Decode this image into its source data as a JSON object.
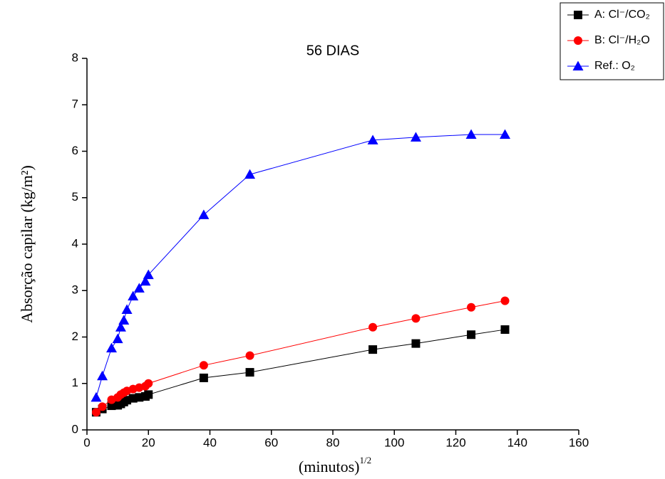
{
  "chart_data": {
    "type": "line",
    "title": "56 DIAS",
    "x_label": {
      "text": "(minutos)",
      "sup": "1/2"
    },
    "y_label": "Absorção capilar (kg/m²)",
    "x": [
      3,
      5,
      8,
      10,
      11,
      12,
      13,
      15,
      17,
      19,
      20,
      38,
      53,
      93,
      107,
      125,
      136
    ],
    "series": [
      {
        "name": "A: Cl⁻/CO₂",
        "color": "#000000",
        "marker": "square",
        "values": [
          0.38,
          0.45,
          0.52,
          0.53,
          0.56,
          0.6,
          0.64,
          0.68,
          0.7,
          0.72,
          0.76,
          1.12,
          1.24,
          1.73,
          1.86,
          2.05,
          2.16
        ]
      },
      {
        "name": "B: Cl⁻/H₂O",
        "color": "#ff0000",
        "marker": "circle",
        "values": [
          0.38,
          0.5,
          0.65,
          0.7,
          0.76,
          0.8,
          0.84,
          0.88,
          0.91,
          0.94,
          1.0,
          1.39,
          1.6,
          2.21,
          2.4,
          2.64,
          2.78
        ]
      },
      {
        "name": "Ref.: O₂",
        "color": "#0000ff",
        "marker": "triangle",
        "values": [
          0.7,
          1.16,
          1.76,
          1.96,
          2.21,
          2.36,
          2.59,
          2.88,
          3.05,
          3.2,
          3.34,
          4.63,
          5.5,
          6.24,
          6.3,
          6.36,
          6.36
        ]
      }
    ],
    "xlim": [
      0,
      160
    ],
    "xticks": [
      0,
      20,
      40,
      60,
      80,
      100,
      120,
      140,
      160
    ],
    "ylim": [
      0,
      8
    ],
    "yticks": [
      0,
      1,
      2,
      3,
      4,
      5,
      6,
      7,
      8
    ],
    "legend": "top-right"
  }
}
